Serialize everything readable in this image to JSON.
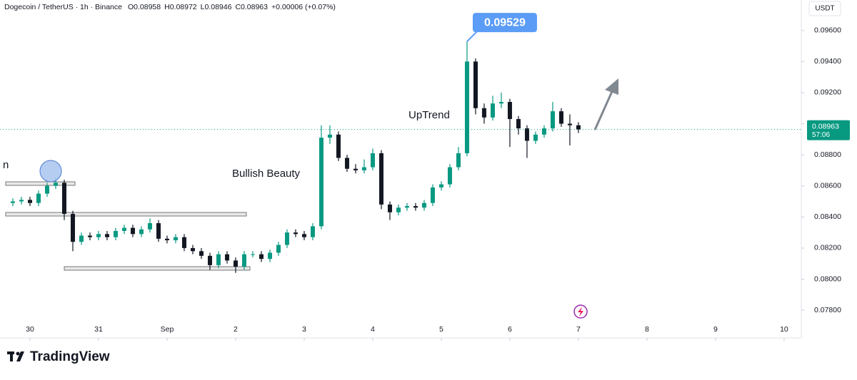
{
  "chart_data": {
    "type": "candlestick",
    "title": "Dogecoin / TetherUS · 1h · Binance",
    "legend_values": [
      "O0.08958",
      "H0.08972",
      "L0.08946",
      "C0.08963",
      "+0.00006 (+0.07%)"
    ],
    "currency": "USDT",
    "up_color": "#089981",
    "down_color": "#131722",
    "x": [
      -0.25,
      -0.125,
      0,
      0.125,
      0.25,
      0.375,
      0.5,
      0.625,
      0.75,
      0.875,
      1,
      1.125,
      1.25,
      1.375,
      1.5,
      1.625,
      1.75,
      1.875,
      2,
      2.125,
      2.25,
      2.375,
      2.5,
      2.625,
      2.75,
      2.875,
      3,
      3.125,
      3.25,
      3.375,
      3.5,
      3.625,
      3.75,
      3.875,
      4,
      4.125,
      4.25,
      4.375,
      4.5,
      4.625,
      4.75,
      4.875,
      5,
      5.125,
      5.25,
      5.375,
      5.5,
      5.625,
      5.75,
      5.875,
      6,
      6.125,
      6.25,
      6.375,
      6.5,
      6.625,
      6.75,
      6.875,
      7,
      7.125,
      7.25,
      7.375,
      7.5,
      7.625,
      7.75,
      7.875,
      8
    ],
    "open": [
      0.0849,
      0.085,
      0.0851,
      0.0849,
      0.0855,
      0.086,
      0.0862,
      0.0842,
      0.0824,
      0.0828,
      0.0827,
      0.0829,
      0.0827,
      0.0831,
      0.0833,
      0.0829,
      0.0832,
      0.0836,
      0.0826,
      0.0825,
      0.0827,
      0.082,
      0.0818,
      0.0815,
      0.0809,
      0.0816,
      0.0812,
      0.0808,
      0.0816,
      0.0816,
      0.0813,
      0.0817,
      0.0822,
      0.083,
      0.0829,
      0.0827,
      0.0834,
      0.0891,
      0.0893,
      0.0878,
      0.0871,
      0.087,
      0.0872,
      0.0881,
      0.0848,
      0.0843,
      0.0846,
      0.0847,
      0.0846,
      0.0849,
      0.0859,
      0.0861,
      0.0872,
      0.0881,
      0.094,
      0.091,
      0.0904,
      0.0913,
      0.0914,
      0.0903,
      0.0897,
      0.0889,
      0.0893,
      0.0897,
      0.0908,
      0.09,
      0.0899
    ],
    "high": [
      0.0852,
      0.0853,
      0.0853,
      0.0857,
      0.0862,
      0.0865,
      0.0864,
      0.0844,
      0.083,
      0.083,
      0.0831,
      0.0831,
      0.0833,
      0.0835,
      0.0835,
      0.0834,
      0.0839,
      0.0838,
      0.0828,
      0.0829,
      0.0829,
      0.0822,
      0.082,
      0.0817,
      0.0818,
      0.0818,
      0.0814,
      0.0818,
      0.0818,
      0.0818,
      0.0819,
      0.0824,
      0.0832,
      0.0832,
      0.0831,
      0.0836,
      0.0899,
      0.0899,
      0.0895,
      0.088,
      0.0874,
      0.0877,
      0.0884,
      0.0883,
      0.085,
      0.0848,
      0.0849,
      0.0849,
      0.0851,
      0.0861,
      0.0863,
      0.0874,
      0.0885,
      0.09529,
      0.0942,
      0.0913,
      0.0918,
      0.092,
      0.0916,
      0.0905,
      0.0899,
      0.0895,
      0.0899,
      0.0914,
      0.091,
      0.0906,
      0.0901
    ],
    "low": [
      0.0847,
      0.0848,
      0.0847,
      0.0847,
      0.0853,
      0.0858,
      0.0838,
      0.0818,
      0.0822,
      0.0825,
      0.0825,
      0.0825,
      0.0825,
      0.0829,
      0.0827,
      0.0827,
      0.083,
      0.0824,
      0.0823,
      0.0823,
      0.0818,
      0.0816,
      0.0813,
      0.0806,
      0.0807,
      0.081,
      0.0804,
      0.0806,
      0.0814,
      0.0811,
      0.0811,
      0.0815,
      0.082,
      0.0827,
      0.0825,
      0.0825,
      0.0832,
      0.0887,
      0.0876,
      0.0869,
      0.0868,
      0.0868,
      0.087,
      0.0845,
      0.0838,
      0.0841,
      0.0844,
      0.0844,
      0.0844,
      0.0847,
      0.0857,
      0.0859,
      0.087,
      0.0879,
      0.0906,
      0.09,
      0.0902,
      0.091,
      0.0885,
      0.0893,
      0.0878,
      0.0887,
      0.0891,
      0.0895,
      0.0898,
      0.0886,
      0.0894
    ],
    "close": [
      0.085,
      0.0851,
      0.0849,
      0.0855,
      0.086,
      0.0862,
      0.0842,
      0.0824,
      0.0828,
      0.0827,
      0.0829,
      0.0827,
      0.0831,
      0.0833,
      0.0829,
      0.0832,
      0.0836,
      0.0826,
      0.0825,
      0.0827,
      0.082,
      0.0818,
      0.0815,
      0.0809,
      0.0816,
      0.0812,
      0.0808,
      0.0816,
      0.0816,
      0.0813,
      0.0817,
      0.0822,
      0.083,
      0.0829,
      0.0827,
      0.0834,
      0.0891,
      0.0893,
      0.0878,
      0.0871,
      0.087,
      0.0872,
      0.0881,
      0.0848,
      0.0843,
      0.0846,
      0.0847,
      0.0846,
      0.0849,
      0.0859,
      0.0861,
      0.0872,
      0.0881,
      0.094,
      0.091,
      0.0904,
      0.0913,
      0.0914,
      0.0903,
      0.0897,
      0.0889,
      0.0893,
      0.0897,
      0.0908,
      0.09,
      0.0899,
      0.08963
    ],
    "xlim": [
      -0.354,
      11.23
    ],
    "xticks": [
      {
        "value": 0,
        "label": "30"
      },
      {
        "value": 1,
        "label": "31"
      },
      {
        "value": 2,
        "label": "Sep"
      },
      {
        "value": 3,
        "label": "2"
      },
      {
        "value": 4,
        "label": "3"
      },
      {
        "value": 5,
        "label": "4"
      },
      {
        "value": 6,
        "label": "5"
      },
      {
        "value": 7,
        "label": "6"
      },
      {
        "value": 8,
        "label": "7"
      },
      {
        "value": 9,
        "label": "8"
      },
      {
        "value": 10,
        "label": "9"
      },
      {
        "value": 11,
        "label": "10"
      }
    ],
    "ylim": [
      0.0764,
      0.0975
    ],
    "yticks": [
      {
        "value": 0.078,
        "label": "0.07800"
      },
      {
        "value": 0.08,
        "label": "0.08000"
      },
      {
        "value": 0.082,
        "label": "0.08200"
      },
      {
        "value": 0.084,
        "label": "0.08400"
      },
      {
        "value": 0.086,
        "label": "0.08600"
      },
      {
        "value": 0.088,
        "label": "0.08800"
      },
      {
        "value": 0.09,
        "label": "0.09000"
      },
      {
        "value": 0.092,
        "label": "0.09200"
      },
      {
        "value": 0.094,
        "label": "0.09400"
      },
      {
        "value": 0.096,
        "label": "0.09600"
      }
    ],
    "last_price": 0.08963,
    "countdown": "57:06",
    "peak_label": 0.09529,
    "annotations": [
      {
        "text": "UpTrend"
      },
      {
        "text": "Bullish Beauty"
      },
      {
        "text": "n"
      }
    ],
    "brand": "TradingView"
  }
}
